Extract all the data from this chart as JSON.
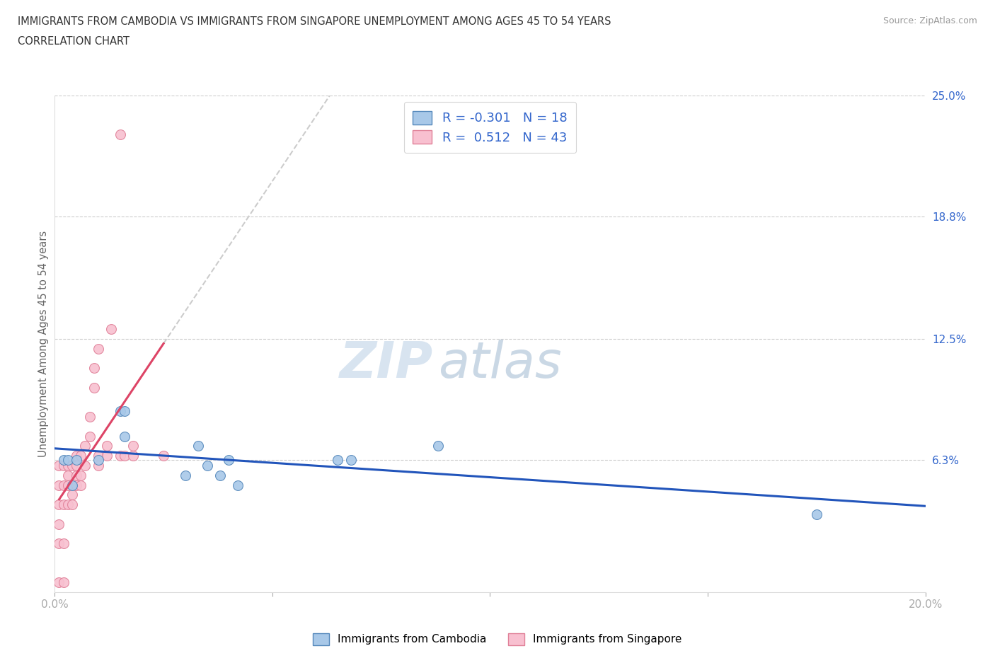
{
  "title_line1": "IMMIGRANTS FROM CAMBODIA VS IMMIGRANTS FROM SINGAPORE UNEMPLOYMENT AMONG AGES 45 TO 54 YEARS",
  "title_line2": "CORRELATION CHART",
  "source": "Source: ZipAtlas.com",
  "ylabel": "Unemployment Among Ages 45 to 54 years",
  "xlim": [
    0.0,
    0.2
  ],
  "ylim": [
    -0.005,
    0.25
  ],
  "xtick_positions": [
    0.0,
    0.05,
    0.1,
    0.15,
    0.2
  ],
  "xtick_labels": [
    "0.0%",
    "",
    "",
    "",
    "20.0%"
  ],
  "ytick_right_labels": [
    "6.3%",
    "12.5%",
    "18.8%",
    "25.0%"
  ],
  "ytick_right_positions": [
    0.063,
    0.125,
    0.188,
    0.25
  ],
  "cambodia_color": "#a8c8e8",
  "cambodia_edge_color": "#5588bb",
  "singapore_color": "#f8c0d0",
  "singapore_edge_color": "#e08098",
  "cambodia_R": -0.301,
  "cambodia_N": 18,
  "singapore_R": 0.512,
  "singapore_N": 43,
  "trend_blue_color": "#2255bb",
  "trend_pink_color": "#dd4466",
  "trend_dashed_color": "#cccccc",
  "watermark_zip": "ZIP",
  "watermark_atlas": "atlas",
  "cambodia_x": [
    0.002,
    0.003,
    0.004,
    0.005,
    0.01,
    0.015,
    0.016,
    0.016,
    0.03,
    0.033,
    0.035,
    0.038,
    0.04,
    0.042,
    0.065,
    0.068,
    0.088,
    0.175
  ],
  "cambodia_y": [
    0.063,
    0.063,
    0.05,
    0.063,
    0.063,
    0.088,
    0.088,
    0.075,
    0.055,
    0.07,
    0.06,
    0.055,
    0.063,
    0.05,
    0.063,
    0.063,
    0.07,
    0.035
  ],
  "singapore_x": [
    0.001,
    0.001,
    0.001,
    0.001,
    0.001,
    0.001,
    0.002,
    0.002,
    0.002,
    0.002,
    0.002,
    0.003,
    0.003,
    0.003,
    0.003,
    0.004,
    0.004,
    0.004,
    0.005,
    0.005,
    0.005,
    0.005,
    0.006,
    0.006,
    0.006,
    0.007,
    0.007,
    0.008,
    0.008,
    0.009,
    0.009,
    0.01,
    0.01,
    0.01,
    0.012,
    0.012,
    0.013,
    0.015,
    0.015,
    0.016,
    0.018,
    0.018,
    0.025
  ],
  "singapore_y": [
    0.0,
    0.02,
    0.03,
    0.04,
    0.05,
    0.06,
    0.0,
    0.02,
    0.04,
    0.05,
    0.06,
    0.04,
    0.05,
    0.055,
    0.06,
    0.04,
    0.045,
    0.06,
    0.05,
    0.055,
    0.06,
    0.065,
    0.05,
    0.055,
    0.065,
    0.06,
    0.07,
    0.075,
    0.085,
    0.1,
    0.11,
    0.06,
    0.065,
    0.12,
    0.065,
    0.07,
    0.13,
    0.065,
    0.23,
    0.065,
    0.065,
    0.07,
    0.065
  ]
}
